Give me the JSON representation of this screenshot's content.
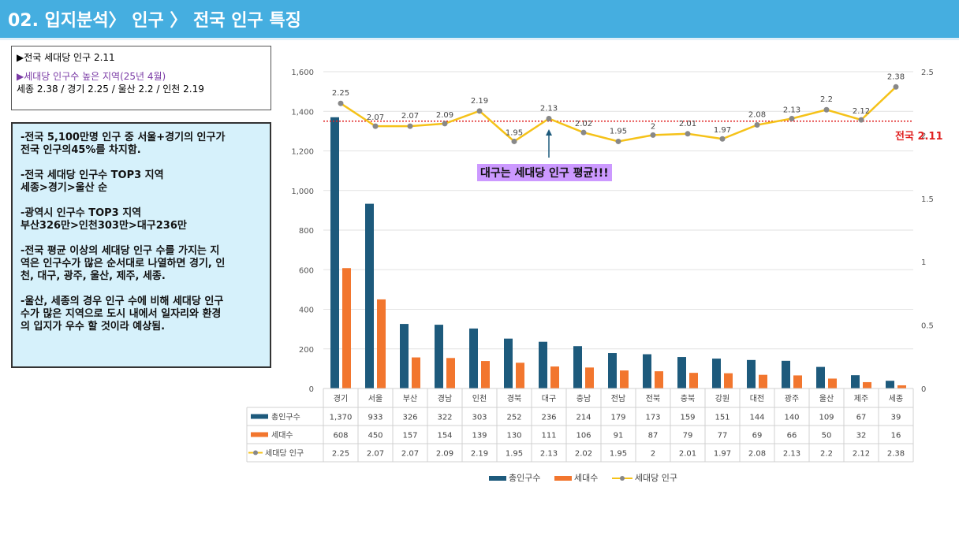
{
  "header": {
    "title": "02. 입지분석〉 인구 〉 전국 인구 특징"
  },
  "summary_box": {
    "line1": "▶전국 세대당 인구 2.11",
    "line2": "▶세대당 인구수 높은 지역(25년 4월)",
    "line3": "세종 2.38 / 경기 2.25 / 울산 2.2 / 인천 2.19"
  },
  "notes_box": {
    "paragraphs": [
      [
        "-전국 5,100만명 인구 중 서울+경기의 인구가",
        "전국 인구의45%를 차지함."
      ],
      [
        "-전국 세대당 인구수 TOP3 지역",
        " 세종>경기>울산 순"
      ],
      [
        "-광역시 인구수 TOP3 지역",
        " 부산326만>인천303만>대구236만"
      ],
      [
        "-전국 평균 이상의 세대당 인구 수를 가지는 지",
        "역은 인구수가 많은 순서대로 나열하면 경기, 인",
        "천, 대구, 광주, 울산, 제주, 세종."
      ],
      [
        "-울산, 세종의 경우 인구 수에 비해 세대당 인구",
        "수가 많은 지역으로 도시 내에서 일자리와 환경",
        "의 입지가 우수 할 것이라 예상됨."
      ]
    ]
  },
  "callout": {
    "text": "대구는 세대당 인구 평균!!!"
  },
  "avg_line": {
    "label": "전국 2.11",
    "value": 2.11,
    "color": "#e02020"
  },
  "colors": {
    "pop": "#1d5a7c",
    "households": "#f2762e",
    "per_household": "#f5c219",
    "marker": "#888888"
  },
  "chart_data": {
    "type": "bar",
    "categories": [
      "경기",
      "서울",
      "부산",
      "경남",
      "인천",
      "경북",
      "대구",
      "충남",
      "전남",
      "전북",
      "충북",
      "강원",
      "대전",
      "광주",
      "울산",
      "제주",
      "세종"
    ],
    "series": [
      {
        "name": "총인구수",
        "type": "bar",
        "axis": "left",
        "values": [
          1370,
          933,
          326,
          322,
          303,
          252,
          236,
          214,
          179,
          173,
          159,
          151,
          144,
          140,
          109,
          67,
          39
        ]
      },
      {
        "name": "세대수",
        "type": "bar",
        "axis": "left",
        "values": [
          608,
          450,
          157,
          154,
          139,
          130,
          111,
          106,
          91,
          87,
          79,
          77,
          69,
          66,
          50,
          32,
          16
        ]
      },
      {
        "name": "세대당 인구",
        "type": "line",
        "axis": "right",
        "values": [
          2.25,
          2.07,
          2.07,
          2.09,
          2.19,
          1.95,
          2.13,
          2.02,
          1.95,
          2,
          2.01,
          1.97,
          2.08,
          2.13,
          2.2,
          2.12,
          2.38
        ]
      }
    ],
    "yleft": {
      "min": 0,
      "max": 1600,
      "ticks": [
        "0",
        "200",
        "400",
        "600",
        "800",
        "1,000",
        "1,200",
        "1,400",
        "1,600"
      ]
    },
    "yright": {
      "min": 0,
      "max": 2.5,
      "ticks": [
        "0",
        "0.5",
        "1",
        "1.5",
        "2",
        "2.5"
      ]
    },
    "table_values": {
      "총인구수": [
        "1,370",
        "933",
        "326",
        "322",
        "303",
        "252",
        "236",
        "214",
        "179",
        "173",
        "159",
        "151",
        "144",
        "140",
        "109",
        "67",
        "39"
      ],
      "세대수": [
        "608",
        "450",
        "157",
        "154",
        "139",
        "130",
        "111",
        "106",
        "91",
        "87",
        "79",
        "77",
        "69",
        "66",
        "50",
        "32",
        "16"
      ],
      "세대당 인구": [
        "2.25",
        "2.07",
        "2.07",
        "2.09",
        "2.19",
        "1.95",
        "2.13",
        "2.02",
        "1.95",
        "2",
        "2.01",
        "1.97",
        "2.08",
        "2.13",
        "2.2",
        "2.12",
        "2.38"
      ]
    },
    "legend": [
      "총인구수",
      "세대수",
      "세대당 인구"
    ],
    "legend_position": "bottom",
    "grid": true
  }
}
